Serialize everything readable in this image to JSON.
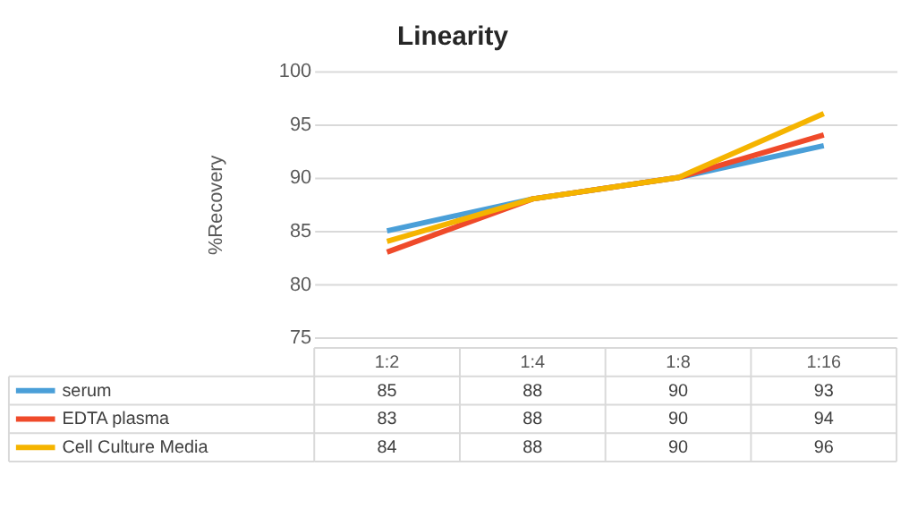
{
  "chart_data": {
    "type": "line",
    "title": "Linearity",
    "ylabel": "%Recovery",
    "categories": [
      "1:2",
      "1:4",
      "1:8",
      "1:16"
    ],
    "series": [
      {
        "name": "serum",
        "color": "#4a9fd8",
        "values": [
          85,
          88,
          90,
          93
        ]
      },
      {
        "name": "EDTA plasma",
        "color": "#ef4a2a",
        "values": [
          83,
          88,
          90,
          94
        ]
      },
      {
        "name": "Cell Culture Media",
        "color": "#f5b400",
        "values": [
          84,
          88,
          90,
          96
        ]
      }
    ],
    "ylim": [
      75,
      100
    ],
    "yticks": [
      75,
      80,
      85,
      90,
      95,
      100
    ],
    "grid": "y",
    "legend": "bottom",
    "data_labels": true,
    "marker": "none",
    "line_style": "solid"
  }
}
